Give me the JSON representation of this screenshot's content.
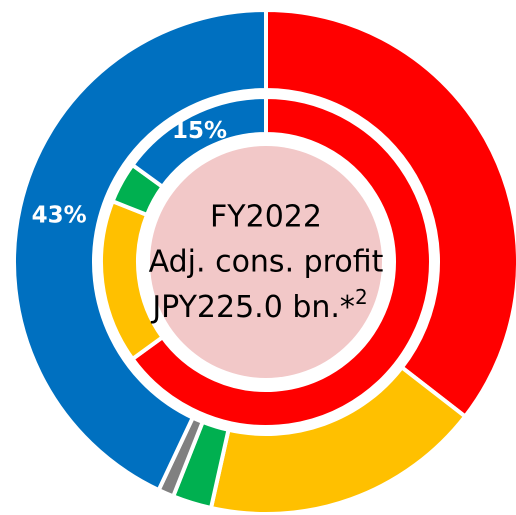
{
  "chart_data": {
    "type": "donut",
    "rings": [
      {
        "values": [
          35.5,
          18,
          2.5,
          1,
          43
        ],
        "colors": [
          "#ff0000",
          "#ffc000",
          "#00b050",
          "#808080",
          "#0070c0"
        ],
        "value_labels": [
          null,
          null,
          null,
          null,
          "43%"
        ]
      },
      {
        "values": [
          65,
          16,
          4,
          15
        ],
        "colors": [
          "#ff0000",
          "#ffc000",
          "#00b050",
          "#0070c0"
        ],
        "value_labels": [
          null,
          null,
          null,
          "15%"
        ]
      }
    ],
    "center_text": [
      "FY2022",
      "Adj. cons. profit",
      "JPY225.0 bn.*"
    ],
    "center_note": "2",
    "center_color": "#f2c8c8"
  }
}
